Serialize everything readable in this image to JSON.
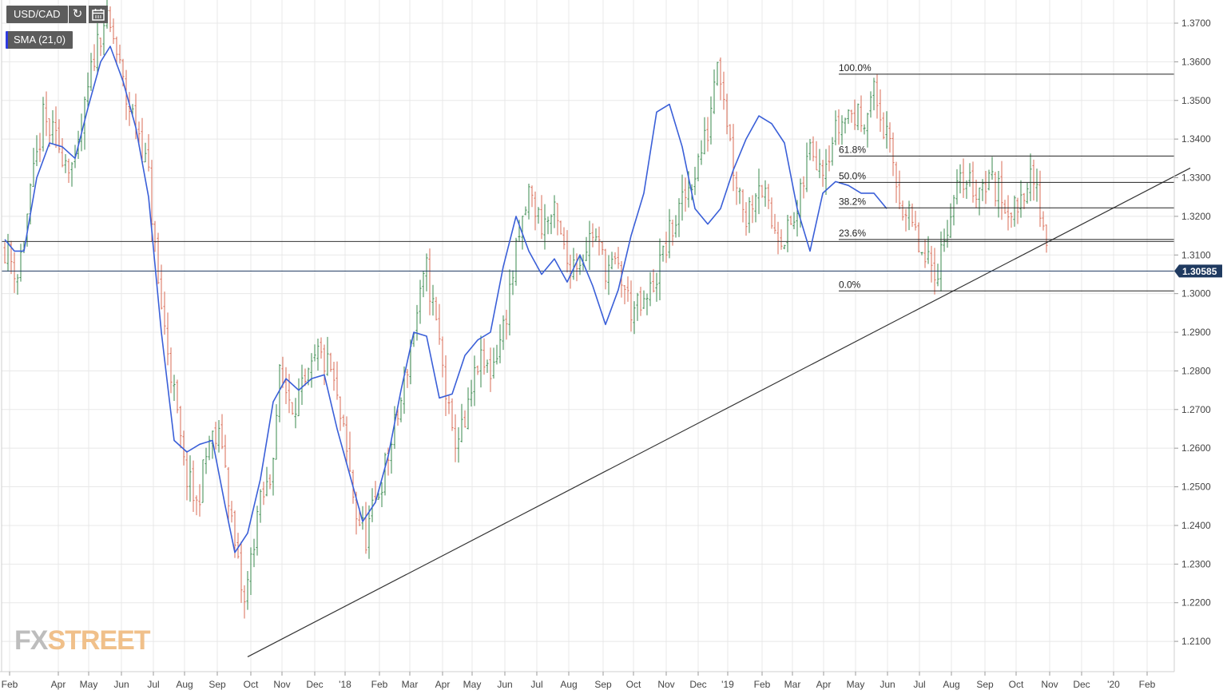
{
  "header": {
    "symbol": "USD/CAD",
    "indicator": "SMA (21,0)",
    "refresh_icon": "refresh-icon",
    "calendar_icon": "calendar-icon"
  },
  "brand": {
    "prefix": "FX",
    "suffix": "STREET"
  },
  "colors": {
    "bullish": "#3a8a4e",
    "bearish": "#d96b55",
    "sma": "#3a5fd8",
    "line": "#333333",
    "price_tag": "#1f3a60",
    "grid": "#e8e8e8"
  },
  "chart_data": {
    "type": "candlestick",
    "title": "USD/CAD",
    "indicator": "SMA (21,0)",
    "x_ticks": [
      "Feb",
      "Apr",
      "May",
      "Jun",
      "Jul",
      "Aug",
      "Sep",
      "Oct",
      "Nov",
      "Dec",
      "'18",
      "Feb",
      "Mar",
      "Apr",
      "May",
      "Jun",
      "Jul",
      "Aug",
      "Sep",
      "Oct",
      "Nov",
      "Dec",
      "'19",
      "Feb",
      "Mar",
      "Apr",
      "May",
      "Jun",
      "Jul",
      "Aug",
      "Sep",
      "Oct",
      "Nov",
      "Dec",
      "'20",
      "Feb"
    ],
    "y_ticks": [
      "1.3700",
      "1.3600",
      "1.3500",
      "1.3400",
      "1.3300",
      "1.3200",
      "1.3100",
      "1.3000",
      "1.2900",
      "1.2800",
      "1.2700",
      "1.2600",
      "1.2500",
      "1.2400",
      "1.2300",
      "1.2200",
      "1.2100"
    ],
    "ylim": [
      1.2045,
      1.3775
    ],
    "grid": true,
    "last_price": "1.30585",
    "last_price_value": 1.30585,
    "price_path": [
      {
        "t": 0,
        "p": 1.312
      },
      {
        "t": 4,
        "p": 1.305
      },
      {
        "t": 8,
        "p": 1.325
      },
      {
        "t": 12,
        "p": 1.345
      },
      {
        "t": 17,
        "p": 1.338
      },
      {
        "t": 22,
        "p": 1.332
      },
      {
        "t": 28,
        "p": 1.362
      },
      {
        "t": 31,
        "p": 1.371
      },
      {
        "t": 34,
        "p": 1.366
      },
      {
        "t": 38,
        "p": 1.35
      },
      {
        "t": 42,
        "p": 1.342
      },
      {
        "t": 45,
        "p": 1.33
      },
      {
        "t": 48,
        "p": 1.302
      },
      {
        "t": 52,
        "p": 1.28
      },
      {
        "t": 56,
        "p": 1.255
      },
      {
        "t": 60,
        "p": 1.245
      },
      {
        "t": 64,
        "p": 1.262
      },
      {
        "t": 68,
        "p": 1.262
      },
      {
        "t": 72,
        "p": 1.234
      },
      {
        "t": 75,
        "p": 1.219
      },
      {
        "t": 79,
        "p": 1.243
      },
      {
        "t": 83,
        "p": 1.252
      },
      {
        "t": 86,
        "p": 1.278
      },
      {
        "t": 90,
        "p": 1.272
      },
      {
        "t": 94,
        "p": 1.275
      },
      {
        "t": 98,
        "p": 1.284
      },
      {
        "t": 102,
        "p": 1.28
      },
      {
        "t": 106,
        "p": 1.263
      },
      {
        "t": 110,
        "p": 1.243
      },
      {
        "t": 113,
        "p": 1.237
      },
      {
        "t": 116,
        "p": 1.246
      },
      {
        "t": 120,
        "p": 1.258
      },
      {
        "t": 124,
        "p": 1.272
      },
      {
        "t": 128,
        "p": 1.291
      },
      {
        "t": 132,
        "p": 1.306
      },
      {
        "t": 136,
        "p": 1.287
      },
      {
        "t": 140,
        "p": 1.262
      },
      {
        "t": 144,
        "p": 1.265
      },
      {
        "t": 148,
        "p": 1.282
      },
      {
        "t": 152,
        "p": 1.28
      },
      {
        "t": 156,
        "p": 1.291
      },
      {
        "t": 160,
        "p": 1.31
      },
      {
        "t": 164,
        "p": 1.326
      },
      {
        "t": 168,
        "p": 1.318
      },
      {
        "t": 172,
        "p": 1.32
      },
      {
        "t": 176,
        "p": 1.308
      },
      {
        "t": 180,
        "p": 1.309
      },
      {
        "t": 184,
        "p": 1.316
      },
      {
        "t": 188,
        "p": 1.307
      },
      {
        "t": 192,
        "p": 1.306
      },
      {
        "t": 196,
        "p": 1.296
      },
      {
        "t": 200,
        "p": 1.296
      },
      {
        "t": 204,
        "p": 1.305
      },
      {
        "t": 208,
        "p": 1.315
      },
      {
        "t": 212,
        "p": 1.323
      },
      {
        "t": 216,
        "p": 1.332
      },
      {
        "t": 220,
        "p": 1.342
      },
      {
        "t": 223,
        "p": 1.363
      },
      {
        "t": 225,
        "p": 1.352
      },
      {
        "t": 228,
        "p": 1.333
      },
      {
        "t": 232,
        "p": 1.32
      },
      {
        "t": 236,
        "p": 1.33
      },
      {
        "t": 240,
        "p": 1.318
      },
      {
        "t": 244,
        "p": 1.315
      },
      {
        "t": 248,
        "p": 1.32
      },
      {
        "t": 252,
        "p": 1.338
      },
      {
        "t": 256,
        "p": 1.334
      },
      {
        "t": 260,
        "p": 1.342
      },
      {
        "t": 264,
        "p": 1.347
      },
      {
        "t": 268,
        "p": 1.345
      },
      {
        "t": 272,
        "p": 1.352
      },
      {
        "t": 276,
        "p": 1.34
      },
      {
        "t": 280,
        "p": 1.325
      },
      {
        "t": 284,
        "p": 1.317
      },
      {
        "t": 288,
        "p": 1.307
      },
      {
        "t": 292,
        "p": 1.307
      },
      {
        "t": 296,
        "p": 1.322
      },
      {
        "t": 300,
        "p": 1.33
      },
      {
        "t": 304,
        "p": 1.327
      },
      {
        "t": 308,
        "p": 1.33
      },
      {
        "t": 312,
        "p": 1.325
      },
      {
        "t": 316,
        "p": 1.321
      },
      {
        "t": 320,
        "p": 1.33
      },
      {
        "t": 323,
        "p": 1.326
      },
      {
        "t": 326,
        "p": 1.314
      },
      {
        "t": 327,
        "p": 1.3058
      }
    ],
    "sma_points": [
      [
        0,
        1.314
      ],
      [
        3,
        1.311
      ],
      [
        6,
        1.311
      ],
      [
        10,
        1.33
      ],
      [
        14,
        1.339
      ],
      [
        18,
        1.338
      ],
      [
        22,
        1.335
      ],
      [
        26,
        1.348
      ],
      [
        30,
        1.36
      ],
      [
        33,
        1.364
      ],
      [
        37,
        1.355
      ],
      [
        41,
        1.343
      ],
      [
        45,
        1.325
      ],
      [
        49,
        1.29
      ],
      [
        53,
        1.262
      ],
      [
        57,
        1.259
      ],
      [
        61,
        1.261
      ],
      [
        65,
        1.262
      ],
      [
        69,
        1.245
      ],
      [
        72,
        1.233
      ],
      [
        76,
        1.238
      ],
      [
        80,
        1.252
      ],
      [
        84,
        1.272
      ],
      [
        88,
        1.278
      ],
      [
        92,
        1.275
      ],
      [
        96,
        1.278
      ],
      [
        100,
        1.279
      ],
      [
        104,
        1.265
      ],
      [
        108,
        1.253
      ],
      [
        112,
        1.241
      ],
      [
        116,
        1.246
      ],
      [
        120,
        1.258
      ],
      [
        124,
        1.275
      ],
      [
        128,
        1.29
      ],
      [
        132,
        1.289
      ],
      [
        136,
        1.273
      ],
      [
        140,
        1.274
      ],
      [
        144,
        1.284
      ],
      [
        148,
        1.288
      ],
      [
        152,
        1.29
      ],
      [
        156,
        1.307
      ],
      [
        160,
        1.32
      ],
      [
        164,
        1.311
      ],
      [
        168,
        1.305
      ],
      [
        172,
        1.309
      ],
      [
        176,
        1.303
      ],
      [
        180,
        1.31
      ],
      [
        184,
        1.302
      ],
      [
        188,
        1.292
      ],
      [
        192,
        1.301
      ],
      [
        196,
        1.315
      ],
      [
        200,
        1.326
      ],
      [
        204,
        1.347
      ],
      [
        208,
        1.349
      ],
      [
        212,
        1.338
      ],
      [
        216,
        1.322
      ],
      [
        220,
        1.318
      ],
      [
        224,
        1.322
      ],
      [
        228,
        1.332
      ],
      [
        232,
        1.34
      ],
      [
        236,
        1.346
      ],
      [
        240,
        1.344
      ],
      [
        244,
        1.339
      ],
      [
        248,
        1.322
      ],
      [
        252,
        1.311
      ],
      [
        256,
        1.326
      ],
      [
        260,
        1.329
      ],
      [
        264,
        1.328
      ],
      [
        268,
        1.326
      ],
      [
        272,
        1.326
      ],
      [
        276,
        1.322
      ]
    ],
    "trendline": {
      "from": {
        "t": 76,
        "p": 1.206
      },
      "to": {
        "t": 371,
        "p": 1.3325
      }
    },
    "horizontal_line": 1.3135,
    "fibonacci": [
      {
        "label": "100.0%",
        "price": 1.3568
      },
      {
        "label": "61.8%",
        "price": 1.3356
      },
      {
        "label": "50.0%",
        "price": 1.3288
      },
      {
        "label": "38.2%",
        "price": 1.3222
      },
      {
        "label": "23.6%",
        "price": 1.314
      },
      {
        "label": "0.0%",
        "price": 1.3007
      }
    ],
    "fibonacci_start_t": 261
  }
}
